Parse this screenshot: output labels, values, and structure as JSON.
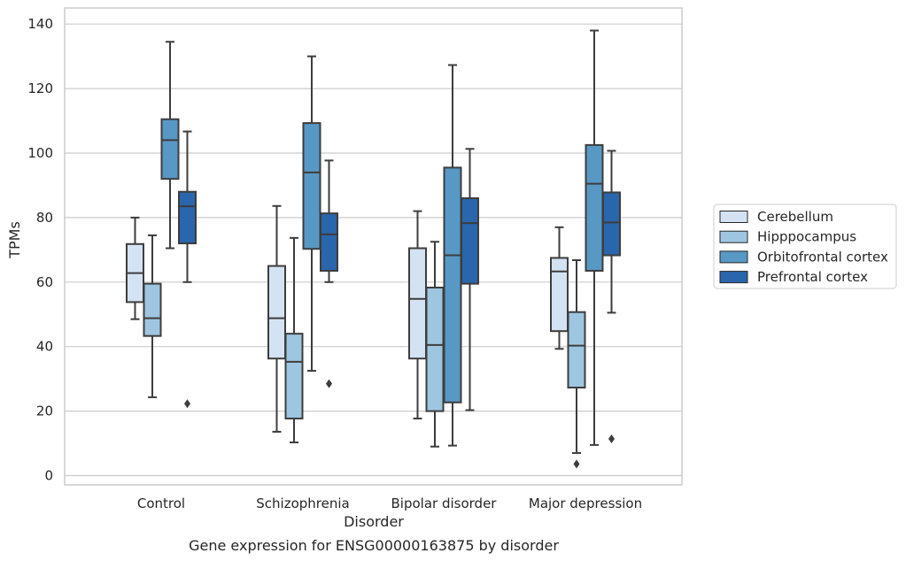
{
  "chart_data": {
    "type": "box",
    "title": "",
    "caption": "Gene expression for ENSG00000163875 by disorder",
    "xlabel": "Disorder",
    "ylabel": "TPMs",
    "ylim": [
      -3,
      145
    ],
    "yticks": [
      0,
      20,
      40,
      60,
      80,
      100,
      120,
      140
    ],
    "grid": "horizontal",
    "legend_position": "right",
    "categories": [
      "Control",
      "Schizophrenia",
      "Bipolar disorder",
      "Major depression"
    ],
    "series": [
      {
        "name": "Cerebellum",
        "color": "#d4e3f3",
        "boxes": [
          {
            "whislo": 48.5,
            "q1": 53.8,
            "med": 62.8,
            "q3": 71.8,
            "whishi": 80.0,
            "fliers": []
          },
          {
            "whislo": 13.6,
            "q1": 36.3,
            "med": 48.8,
            "q3": 65.0,
            "whishi": 83.6,
            "fliers": []
          },
          {
            "whislo": 17.7,
            "q1": 36.3,
            "med": 54.8,
            "q3": 70.5,
            "whishi": 82.0,
            "fliers": []
          },
          {
            "whislo": 39.3,
            "q1": 44.8,
            "med": 63.3,
            "q3": 67.5,
            "whishi": 77.0,
            "fliers": []
          }
        ]
      },
      {
        "name": "Hipppocampus",
        "color": "#9ec6e0",
        "boxes": [
          {
            "whislo": 24.3,
            "q1": 43.3,
            "med": 48.8,
            "q3": 59.5,
            "whishi": 74.5,
            "fliers": []
          },
          {
            "whislo": 10.3,
            "q1": 17.7,
            "med": 35.3,
            "q3": 44.0,
            "whishi": 73.7,
            "fliers": []
          },
          {
            "whislo": 9.0,
            "q1": 20.0,
            "med": 40.5,
            "q3": 58.3,
            "whishi": 72.5,
            "fliers": []
          },
          {
            "whislo": 7.0,
            "q1": 27.3,
            "med": 40.3,
            "q3": 50.7,
            "whishi": 66.8,
            "fliers": [
              3.6
            ]
          }
        ]
      },
      {
        "name": "Orbitofrontal cortex",
        "color": "#5898c5",
        "boxes": [
          {
            "whislo": 70.5,
            "q1": 92.0,
            "med": 104.0,
            "q3": 110.5,
            "whishi": 134.5,
            "fliers": []
          },
          {
            "whislo": 32.5,
            "q1": 70.3,
            "med": 94.0,
            "q3": 109.3,
            "whishi": 130.0,
            "fliers": []
          },
          {
            "whislo": 9.3,
            "q1": 22.7,
            "med": 68.3,
            "q3": 95.5,
            "whishi": 127.3,
            "fliers": []
          },
          {
            "whislo": 9.5,
            "q1": 63.5,
            "med": 90.5,
            "q3": 102.5,
            "whishi": 138.0,
            "fliers": []
          }
        ]
      },
      {
        "name": "Prefrontal cortex",
        "color": "#2a66ab",
        "boxes": [
          {
            "whislo": 60.0,
            "q1": 72.0,
            "med": 83.5,
            "q3": 88.0,
            "whishi": 106.7,
            "fliers": [
              22.3
            ]
          },
          {
            "whislo": 60.0,
            "q1": 63.5,
            "med": 74.8,
            "q3": 81.3,
            "whishi": 97.7,
            "fliers": [
              28.5
            ]
          },
          {
            "whislo": 20.3,
            "q1": 59.5,
            "med": 78.3,
            "q3": 86.0,
            "whishi": 101.3,
            "fliers": []
          },
          {
            "whislo": 50.5,
            "q1": 68.3,
            "med": 78.5,
            "q3": 87.8,
            "whishi": 100.7,
            "fliers": [
              11.4
            ]
          }
        ]
      }
    ]
  }
}
